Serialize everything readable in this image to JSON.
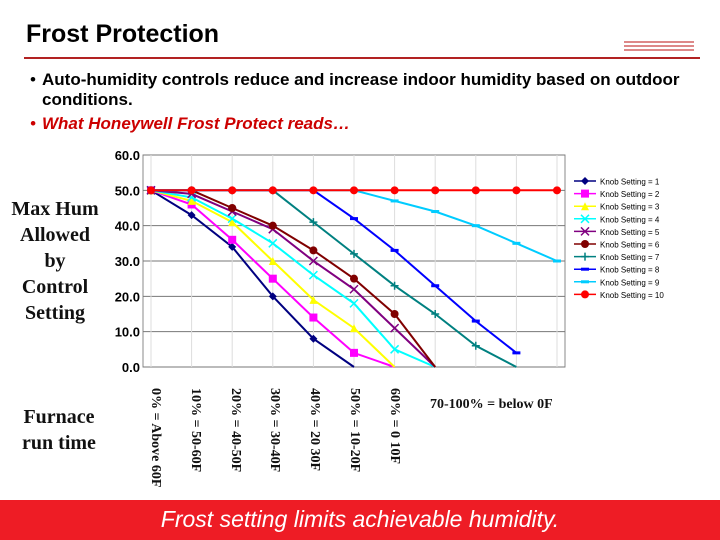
{
  "slide": {
    "title": "Frost Protection",
    "bullets": [
      "Auto-humidity controls reduce and increase indoor humidity based on outdoor conditions.",
      "What Honeywell Frost Protect reads…"
    ],
    "bullet_glyph": "•",
    "side_label": [
      "Max Hum",
      "Allowed",
      "by",
      "Control",
      "Setting"
    ],
    "furnace_label": [
      "Furnace",
      "run time"
    ],
    "runtime_labels": [
      "0% = Above 60F",
      "10% = 50-60F",
      "20% = 40-50F",
      "30% = 30-40F",
      "40% = 20 30F",
      "50% = 10-20F",
      "60% = 0 10F"
    ],
    "runtime_note": "70-100% = below 0F",
    "footer": "Frost setting limits achievable humidity.",
    "colors": {
      "accent_red": "#ee1c25",
      "title_rule": "#b22222",
      "footer_text": "#ffffff"
    }
  },
  "chart_data": {
    "type": "line",
    "ylim": [
      0,
      60
    ],
    "yticks": [
      "0.0",
      "10.0",
      "20.0",
      "30.0",
      "40.0",
      "50.0",
      "60.0"
    ],
    "x": [
      0,
      1,
      2,
      3,
      4,
      5,
      6,
      7,
      8,
      9,
      10
    ],
    "grid": true,
    "legend_position": "right",
    "series": [
      {
        "name": "Knob Setting = 1",
        "color": "#000080",
        "marker": "diamond",
        "values": [
          50,
          43,
          34,
          20,
          8,
          0,
          null,
          null,
          null,
          null,
          null
        ]
      },
      {
        "name": "Knob Setting = 2",
        "color": "#ff00ff",
        "marker": "square",
        "values": [
          50,
          46,
          36,
          25,
          14,
          4,
          0,
          null,
          null,
          null,
          null
        ]
      },
      {
        "name": "Knob Setting = 3",
        "color": "#ffff00",
        "marker": "triangle",
        "values": [
          50,
          47,
          41,
          30,
          19,
          11,
          0,
          null,
          null,
          null,
          null
        ]
      },
      {
        "name": "Knob Setting = 4",
        "color": "#00ffff",
        "marker": "x",
        "values": [
          50,
          48,
          42,
          35,
          26,
          18,
          5,
          0,
          null,
          null,
          null
        ]
      },
      {
        "name": "Knob Setting = 5",
        "color": "#800080",
        "marker": "x",
        "values": [
          50,
          49,
          44,
          39,
          30,
          22,
          11,
          0,
          null,
          null,
          null
        ]
      },
      {
        "name": "Knob Setting = 6",
        "color": "#800000",
        "marker": "circle",
        "values": [
          50,
          50,
          45,
          40,
          33,
          25,
          15,
          0,
          null,
          null,
          null
        ]
      },
      {
        "name": "Knob Setting = 7",
        "color": "#008080",
        "marker": "plus",
        "values": [
          50,
          50,
          50,
          50,
          41,
          32,
          23,
          15,
          6,
          0,
          null
        ]
      },
      {
        "name": "Knob Setting = 8",
        "color": "#0000ff",
        "marker": "dash",
        "values": [
          50,
          50,
          50,
          50,
          50,
          42,
          33,
          23,
          13,
          4,
          null
        ]
      },
      {
        "name": "Knob Setting = 9",
        "color": "#00ccff",
        "marker": "dash",
        "values": [
          50,
          50,
          50,
          50,
          50,
          50,
          47,
          44,
          40,
          35,
          30
        ]
      },
      {
        "name": "Knob Setting = 10",
        "color": "#ff0000",
        "marker": "circle",
        "values": [
          50,
          50,
          50,
          50,
          50,
          50,
          50,
          50,
          50,
          50,
          50
        ]
      }
    ]
  }
}
